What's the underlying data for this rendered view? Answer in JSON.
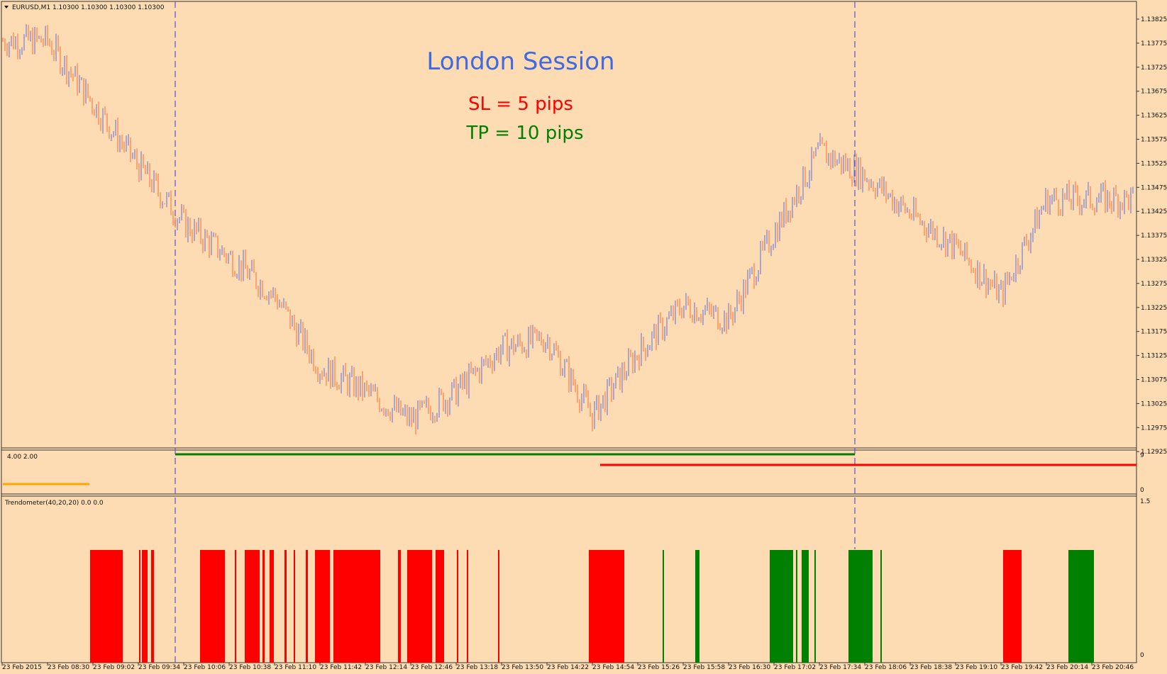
{
  "symbol_header": "EURUSD,M1  1.10300 1.10300 1.10300 1.10300",
  "annotations": {
    "session_label": "London Session",
    "sl_label": "SL = 5 pips",
    "tp_label": "TP = 10 pips"
  },
  "price_axis": {
    "ticks": [
      "1.13825",
      "1.13775",
      "1.13725",
      "1.13675",
      "1.13625",
      "1.13575",
      "1.13525",
      "1.13475",
      "1.13425",
      "1.13375",
      "1.13325",
      "1.13275",
      "1.13225",
      "1.13175",
      "1.13125",
      "1.13075",
      "1.13025",
      "1.12975",
      "1.12925"
    ]
  },
  "middle_panel": {
    "label": "4.00 2.00",
    "axis_top": "9",
    "axis_bottom": "0"
  },
  "trend_panel": {
    "label": "Trendometer(40,20,20) 0.0 0.0",
    "axis_top": "1.5",
    "axis_bottom": "0"
  },
  "time_axis": {
    "labels": [
      "23 Feb 2015",
      "23 Feb 08:30",
      "23 Feb 09:02",
      "23 Feb 09:34",
      "23 Feb 10:06",
      "23 Feb 10:38",
      "23 Feb 11:10",
      "23 Feb 11:42",
      "23 Feb 12:14",
      "23 Feb 12:46",
      "23 Feb 13:18",
      "23 Feb 13:50",
      "23 Feb 14:22",
      "23 Feb 14:54",
      "23 Feb 15:26",
      "23 Feb 15:58",
      "23 Feb 16:30",
      "23 Feb 17:02",
      "23 Feb 17:34",
      "23 Feb 18:06",
      "23 Feb 18:38",
      "23 Feb 19:10",
      "23 Feb 19:42",
      "23 Feb 20:14",
      "23 Feb 20:46"
    ]
  },
  "colors": {
    "background": "#fddcb4",
    "up_bar": "#5b6ee1",
    "down_bar": "#ff6a2a",
    "session_line": "#6a5acd",
    "tp_line": "#008000",
    "sl_line": "#ff0000",
    "orange_line": "#ffa500",
    "trend_red": "#ff0000",
    "trend_green": "#008000",
    "title_blue": "#4169e1",
    "sl_red": "#ff0000",
    "tp_green": "#008000"
  },
  "chart_data": {
    "type": "candlestick",
    "price_path_approx": [
      [
        "23 Feb 08:30",
        1.1378
      ],
      [
        "23 Feb 09:02",
        1.1365
      ],
      [
        "23 Feb 09:34",
        1.1352
      ],
      [
        "23 Feb 10:06",
        1.134
      ],
      [
        "23 Feb 10:38",
        1.1333
      ],
      [
        "23 Feb 11:10",
        1.1325
      ],
      [
        "23 Feb 11:42",
        1.131
      ],
      [
        "23 Feb 12:14",
        1.1305
      ],
      [
        "23 Feb 12:46",
        1.1299
      ],
      [
        "23 Feb 13:18",
        1.1305
      ],
      [
        "23 Feb 13:50",
        1.1314
      ],
      [
        "23 Feb 14:22",
        1.1316
      ],
      [
        "23 Feb 14:54",
        1.13
      ],
      [
        "23 Feb 15:26",
        1.1313
      ],
      [
        "23 Feb 15:58",
        1.1323
      ],
      [
        "23 Feb 16:30",
        1.132
      ],
      [
        "23 Feb 17:02",
        1.1338
      ],
      [
        "23 Feb 17:34",
        1.1355
      ],
      [
        "23 Feb 18:06",
        1.135
      ],
      [
        "23 Feb 18:38",
        1.1342
      ],
      [
        "23 Feb 19:10",
        1.1335
      ],
      [
        "23 Feb 19:42",
        1.1325
      ],
      [
        "23 Feb 20:14",
        1.1345
      ],
      [
        "23 Feb 20:46",
        1.1345
      ]
    ],
    "trend_bars": [
      {
        "x1": 127,
        "x2": 173,
        "color": "red"
      },
      {
        "x1": 196,
        "x2": 197,
        "color": "red"
      },
      {
        "x1": 200,
        "x2": 208,
        "color": "red"
      },
      {
        "x1": 213,
        "x2": 217,
        "color": "red"
      },
      {
        "x1": 282,
        "x2": 317,
        "color": "red"
      },
      {
        "x1": 331,
        "x2": 333,
        "color": "red"
      },
      {
        "x1": 345,
        "x2": 366,
        "color": "red"
      },
      {
        "x1": 370,
        "x2": 373,
        "color": "red"
      },
      {
        "x1": 380,
        "x2": 386,
        "color": "red"
      },
      {
        "x1": 401,
        "x2": 404,
        "color": "red"
      },
      {
        "x1": 414,
        "x2": 416,
        "color": "red"
      },
      {
        "x1": 431,
        "x2": 434,
        "color": "red"
      },
      {
        "x1": 444,
        "x2": 465,
        "color": "red"
      },
      {
        "x1": 470,
        "x2": 536,
        "color": "red"
      },
      {
        "x1": 561,
        "x2": 565,
        "color": "red"
      },
      {
        "x1": 574,
        "x2": 609,
        "color": "red"
      },
      {
        "x1": 614,
        "x2": 626,
        "color": "red"
      },
      {
        "x1": 644,
        "x2": 646,
        "color": "red"
      },
      {
        "x1": 658,
        "x2": 660,
        "color": "red"
      },
      {
        "x1": 702,
        "x2": 704,
        "color": "red"
      },
      {
        "x1": 830,
        "x2": 880,
        "color": "red"
      },
      {
        "x1": 934,
        "x2": 936,
        "color": "green"
      },
      {
        "x1": 980,
        "x2": 986,
        "color": "green"
      },
      {
        "x1": 1085,
        "x2": 1118,
        "color": "green"
      },
      {
        "x1": 1122,
        "x2": 1124,
        "color": "green"
      },
      {
        "x1": 1130,
        "x2": 1140,
        "color": "green"
      },
      {
        "x1": 1148,
        "x2": 1150,
        "color": "green"
      },
      {
        "x1": 1196,
        "x2": 1230,
        "color": "green"
      },
      {
        "x1": 1241,
        "x2": 1243,
        "color": "green"
      },
      {
        "x1": 1414,
        "x2": 1440,
        "color": "red"
      },
      {
        "x1": 1506,
        "x2": 1542,
        "color": "green"
      }
    ]
  }
}
